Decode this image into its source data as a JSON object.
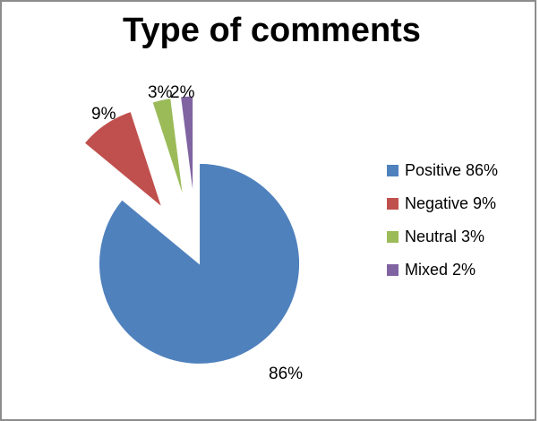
{
  "chart_data": {
    "type": "pie",
    "title": "Type of comments",
    "categories": [
      "Positive 86%",
      "Negative 9%",
      "Neutral 3%",
      "Mixed 2%"
    ],
    "values": [
      86,
      9,
      3,
      2
    ],
    "data_labels": [
      "86%",
      "9%",
      "3%",
      "2%"
    ],
    "colors": [
      "#4f81bd",
      "#c0504d",
      "#9bbb59",
      "#8064a2"
    ],
    "exploded": true,
    "legend_position": "right"
  }
}
